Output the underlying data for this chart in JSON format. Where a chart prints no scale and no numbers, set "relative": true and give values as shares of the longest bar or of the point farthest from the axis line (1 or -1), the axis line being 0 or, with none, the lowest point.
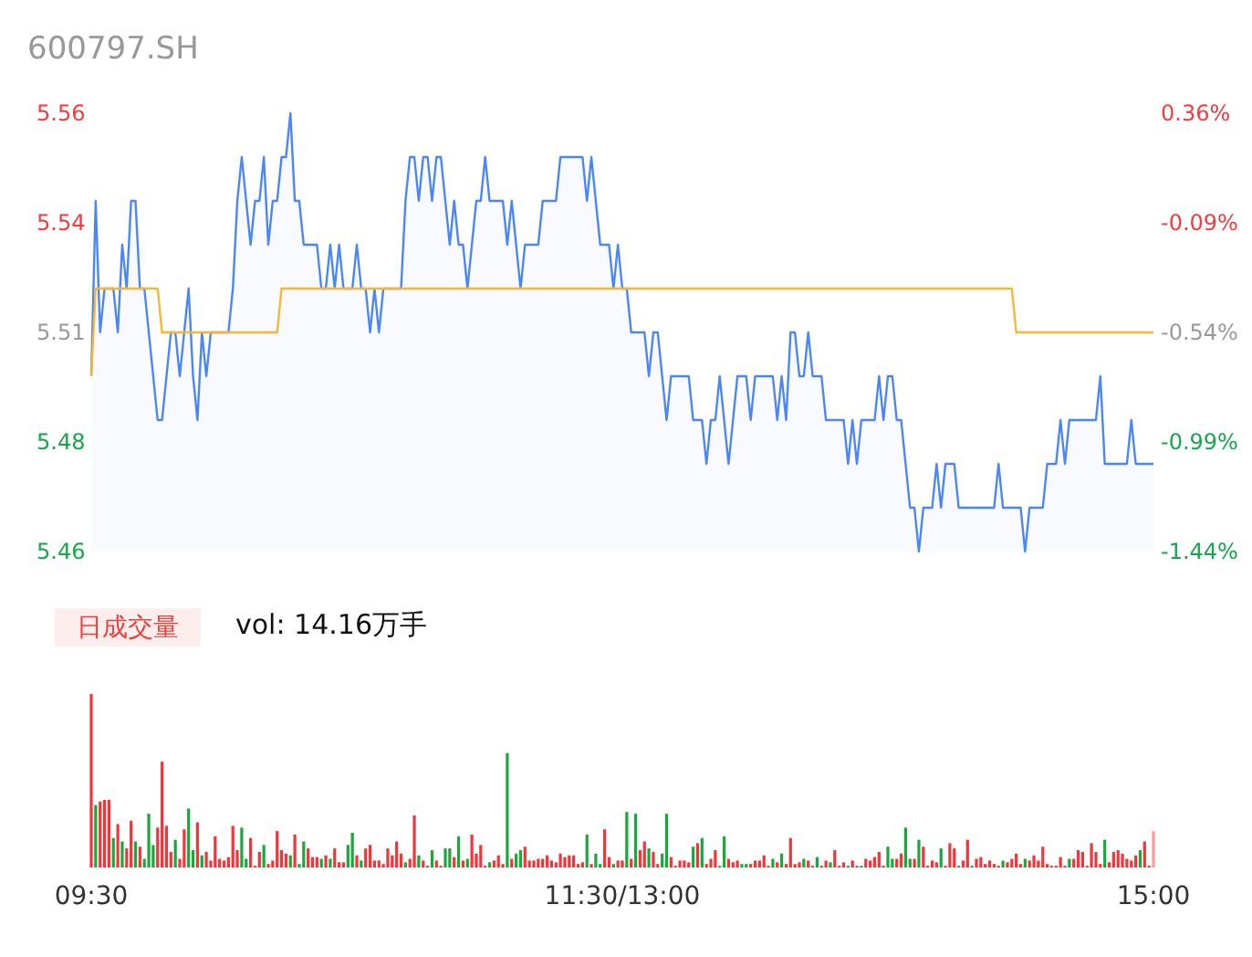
{
  "chart_data": [
    {
      "type": "area",
      "title": "600797.SH",
      "categories": [
        null,
        null,
        null,
        null,
        null,
        null,
        null,
        null,
        null,
        null,
        null,
        null,
        null,
        null,
        null,
        null,
        null,
        null,
        null,
        null,
        null,
        null,
        null,
        null,
        null,
        null,
        null,
        null,
        null,
        null,
        null,
        null,
        null,
        null,
        null,
        null,
        null,
        null,
        null,
        null,
        null,
        null,
        null,
        null,
        null,
        null,
        null,
        null,
        null,
        null,
        null,
        null,
        null,
        null,
        null,
        null,
        null,
        null,
        null,
        null,
        null,
        null,
        null,
        null,
        null,
        null,
        null,
        null,
        null,
        null,
        null,
        null,
        null,
        null,
        null,
        null,
        null,
        null,
        null,
        null,
        null,
        null,
        null,
        null,
        null,
        null,
        null,
        null,
        null,
        null,
        null,
        null,
        null,
        null,
        null,
        null,
        null,
        null,
        null,
        null,
        null,
        null,
        null,
        null,
        null,
        null,
        null,
        null,
        null,
        null,
        null,
        null,
        null,
        null,
        null,
        null,
        null,
        null,
        null,
        null,
        null,
        null,
        null,
        null,
        null,
        null,
        null,
        null,
        null,
        null,
        null,
        null,
        null,
        null,
        null,
        null,
        null,
        null,
        null,
        null,
        null,
        null,
        null,
        null,
        null,
        null,
        null,
        null,
        null,
        null,
        null,
        null,
        null,
        null,
        null,
        null,
        null,
        null,
        null,
        null,
        null,
        null,
        null,
        null,
        null,
        null,
        null,
        null,
        null,
        null,
        null,
        null,
        null,
        null,
        null,
        null,
        null,
        null,
        null,
        null,
        null,
        null,
        null,
        null,
        null,
        null,
        null,
        null,
        null,
        null,
        null,
        null,
        null,
        null,
        null,
        null,
        null,
        null,
        null,
        null,
        null,
        null,
        null,
        null,
        null,
        null,
        null,
        null,
        null,
        null,
        null,
        null,
        null,
        null,
        null,
        null,
        null,
        null,
        null,
        null,
        null,
        null,
        null,
        null,
        null,
        null,
        null,
        null,
        null,
        null,
        null,
        null,
        null,
        null,
        null,
        null,
        null,
        null,
        null,
        null,
        null
      ],
      "ylim": [
        5.46,
        5.56
      ],
      "yticks": [
        5.56,
        {
          "value": 5.535,
          "label": "5.54"
        },
        5.51,
        {
          "value": 5.485,
          "label": "5.48"
        },
        5.46
      ],
      "y2lim": [
        -1.44,
        0.36
      ],
      "y2ticks": [
        {
          "value": 0.36,
          "label": "0.36%"
        },
        {
          "value": -0.09,
          "label": "-0.09%"
        },
        {
          "value": -0.54,
          "label": "-0.54%"
        },
        {
          "value": -0.99,
          "label": "-0.99%"
        },
        {
          "value": -1.44,
          "label": "-1.44%"
        }
      ],
      "tick_labels": "y",
      "series": [
        {
          "type": "area",
          "color": "#4a86f7",
          "values": [
            5.5,
            5.54,
            5.51,
            5.52,
            5.52,
            5.52,
            5.51,
            5.53,
            5.52,
            5.54,
            5.54,
            5.52,
            5.52,
            5.51,
            5.5,
            5.49,
            5.49,
            5.5,
            5.51,
            5.51,
            5.5,
            5.51,
            5.52,
            5.5,
            5.49,
            5.51,
            5.5,
            5.51,
            5.51,
            5.51,
            5.51,
            5.51,
            5.52,
            5.54,
            5.55,
            5.54,
            5.53,
            5.54,
            5.54,
            5.55,
            5.53,
            5.54,
            5.54,
            5.55,
            5.55,
            5.56,
            5.54,
            5.54,
            5.53,
            5.53,
            5.53,
            5.53,
            5.52,
            5.52,
            5.53,
            5.52,
            5.53,
            5.52,
            5.52,
            5.52,
            5.53,
            5.52,
            5.52,
            5.51,
            5.52,
            5.51,
            5.52,
            5.52,
            5.52,
            5.52,
            5.52,
            5.54,
            5.55,
            5.55,
            5.54,
            5.55,
            5.55,
            5.54,
            5.55,
            5.55,
            5.54,
            5.53,
            5.54,
            5.53,
            5.53,
            5.52,
            5.53,
            5.54,
            5.54,
            5.55,
            5.54,
            5.54,
            5.54,
            5.54,
            5.53,
            5.54,
            5.53,
            5.52,
            5.53,
            5.53,
            5.53,
            5.53,
            5.54,
            5.54,
            5.54,
            5.54,
            5.55,
            5.55,
            5.55,
            5.55,
            5.55,
            5.55,
            5.54,
            5.55,
            5.54,
            5.53,
            5.53,
            5.53,
            5.52,
            5.53,
            5.52,
            5.52,
            5.51,
            5.51,
            5.51,
            5.51,
            5.5,
            5.51,
            5.51,
            5.5,
            5.49,
            5.5,
            5.5,
            5.5,
            5.5,
            5.5,
            5.49,
            5.49,
            5.49,
            5.48,
            5.49,
            5.49,
            5.5,
            5.49,
            5.48,
            5.49,
            5.5,
            5.5,
            5.5,
            5.49,
            5.5,
            5.5,
            5.5,
            5.5,
            5.5,
            5.49,
            5.5,
            5.49,
            5.51,
            5.51,
            5.5,
            5.5,
            5.51,
            5.5,
            5.5,
            5.5,
            5.49,
            5.49,
            5.49,
            5.49,
            5.49,
            5.48,
            5.49,
            5.48,
            5.49,
            5.49,
            5.49,
            5.49,
            5.5,
            5.49,
            5.5,
            5.5,
            5.49,
            5.49,
            5.48,
            5.47,
            5.47,
            5.46,
            5.47,
            5.47,
            5.47,
            5.48,
            5.47,
            5.48,
            5.48,
            5.48,
            5.47,
            5.47,
            5.47,
            5.47,
            5.47,
            5.47,
            5.47,
            5.47,
            5.47,
            5.48,
            5.47,
            5.47,
            5.47,
            5.47,
            5.47,
            5.46,
            5.47,
            5.47,
            5.47,
            5.47,
            5.48,
            5.48,
            5.48,
            5.49,
            5.48,
            5.49,
            5.49,
            5.49,
            5.49,
            5.49,
            5.49,
            5.49,
            5.5,
            5.48,
            5.48,
            5.48,
            5.48,
            5.48,
            5.48,
            5.49,
            5.48,
            5.48,
            5.48,
            5.48,
            5.48
          ]
        },
        {
          "type": "line",
          "color": "#f7b731",
          "values": [
            5.5,
            5.52,
            5.52,
            5.52,
            5.52,
            5.52,
            5.52,
            5.52,
            5.52,
            5.52,
            5.52,
            5.52,
            5.52,
            5.52,
            5.52,
            5.52,
            5.51,
            5.51,
            5.51,
            5.51,
            5.51,
            5.51,
            5.51,
            5.51,
            5.51,
            5.51,
            5.51,
            5.51,
            5.51,
            5.51,
            5.51,
            5.51,
            5.51,
            5.51,
            5.51,
            5.51,
            5.51,
            5.51,
            5.51,
            5.51,
            5.51,
            5.51,
            5.51,
            5.52,
            5.52,
            5.52,
            5.52,
            5.52,
            5.52,
            5.52,
            5.52,
            5.52,
            5.52,
            5.52,
            5.52,
            5.52,
            5.52,
            5.52,
            5.52,
            5.52,
            5.52,
            5.52,
            5.52,
            5.52,
            5.52,
            5.52,
            5.52,
            5.52,
            5.52,
            5.52,
            5.52,
            5.52,
            5.52,
            5.52,
            5.52,
            5.52,
            5.52,
            5.52,
            5.52,
            5.52,
            5.52,
            5.52,
            5.52,
            5.52,
            5.52,
            5.52,
            5.52,
            5.52,
            5.52,
            5.52,
            5.52,
            5.52,
            5.52,
            5.52,
            5.52,
            5.52,
            5.52,
            5.52,
            5.52,
            5.52,
            5.52,
            5.52,
            5.52,
            5.52,
            5.52,
            5.52,
            5.52,
            5.52,
            5.52,
            5.52,
            5.52,
            5.52,
            5.52,
            5.52,
            5.52,
            5.52,
            5.52,
            5.52,
            5.52,
            5.52,
            5.52,
            5.52,
            5.52,
            5.52,
            5.52,
            5.52,
            5.52,
            5.52,
            5.52,
            5.52,
            5.52,
            5.52,
            5.52,
            5.52,
            5.52,
            5.52,
            5.52,
            5.52,
            5.52,
            5.52,
            5.52,
            5.52,
            5.52,
            5.52,
            5.52,
            5.52,
            5.52,
            5.52,
            5.52,
            5.52,
            5.52,
            5.52,
            5.52,
            5.52,
            5.52,
            5.52,
            5.52,
            5.52,
            5.52,
            5.52,
            5.52,
            5.52,
            5.52,
            5.52,
            5.52,
            5.52,
            5.52,
            5.52,
            5.52,
            5.52,
            5.52,
            5.52,
            5.52,
            5.52,
            5.52,
            5.52,
            5.52,
            5.52,
            5.52,
            5.52,
            5.52,
            5.52,
            5.52,
            5.52,
            5.52,
            5.52,
            5.52,
            5.52,
            5.52,
            5.52,
            5.52,
            5.52,
            5.52,
            5.52,
            5.52,
            5.52,
            5.52,
            5.52,
            5.52,
            5.52,
            5.52,
            5.52,
            5.52,
            5.52,
            5.52,
            5.52,
            5.52,
            5.52,
            5.52,
            5.51,
            5.51,
            5.51,
            5.51,
            5.51,
            5.51,
            5.51,
            5.51,
            5.51,
            5.51,
            5.51,
            5.51,
            5.51,
            5.51,
            5.51,
            5.51,
            5.51,
            5.51,
            5.51,
            5.51,
            5.51,
            5.51,
            5.51,
            5.51,
            5.51,
            5.51,
            5.51,
            5.51,
            5.51,
            5.51,
            5.51,
            5.51
          ]
        }
      ]
    },
    {
      "type": "bar",
      "title": "日成交量",
      "annotations": [
        "vol: 14.16万手"
      ],
      "relative": true,
      "tick_labels": "x",
      "categories": [
        "09:30",
        null,
        null,
        null,
        null,
        null,
        null,
        null,
        null,
        null,
        null,
        null,
        null,
        null,
        null,
        null,
        null,
        null,
        null,
        null,
        null,
        null,
        null,
        null,
        null,
        null,
        null,
        null,
        null,
        null,
        null,
        null,
        null,
        null,
        null,
        null,
        null,
        null,
        null,
        null,
        null,
        null,
        null,
        null,
        null,
        null,
        null,
        null,
        null,
        null,
        null,
        null,
        null,
        null,
        null,
        null,
        null,
        null,
        null,
        null,
        null,
        null,
        null,
        null,
        null,
        null,
        null,
        null,
        null,
        null,
        null,
        null,
        null,
        null,
        null,
        null,
        null,
        null,
        null,
        null,
        null,
        null,
        null,
        null,
        null,
        null,
        null,
        null,
        null,
        null,
        null,
        null,
        null,
        null,
        null,
        null,
        null,
        null,
        null,
        null,
        null,
        null,
        null,
        null,
        null,
        null,
        null,
        null,
        null,
        null,
        null,
        null,
        null,
        null,
        null,
        null,
        null,
        null,
        null,
        null,
        "11:30/13:00",
        null,
        null,
        null,
        null,
        null,
        null,
        null,
        null,
        null,
        null,
        null,
        null,
        null,
        null,
        null,
        null,
        null,
        null,
        null,
        null,
        null,
        null,
        null,
        null,
        null,
        null,
        null,
        null,
        null,
        null,
        null,
        null,
        null,
        null,
        null,
        null,
        null,
        null,
        null,
        null,
        null,
        null,
        null,
        null,
        null,
        null,
        null,
        null,
        null,
        null,
        null,
        null,
        null,
        null,
        null,
        null,
        null,
        null,
        null,
        null,
        null,
        null,
        null,
        null,
        null,
        null,
        null,
        null,
        null,
        null,
        null,
        null,
        null,
        null,
        null,
        null,
        null,
        null,
        null,
        null,
        null,
        null,
        null,
        null,
        null,
        null,
        null,
        null,
        null,
        null,
        null,
        null,
        null,
        null,
        null,
        null,
        null,
        null,
        null,
        null,
        null,
        null,
        null,
        null,
        null,
        null,
        null,
        null,
        null,
        null,
        null,
        null,
        null,
        null,
        null,
        null,
        null,
        null,
        null,
        "15:00"
      ],
      "values": [
        1.0,
        0.36,
        0.38,
        0.39,
        0.39,
        0.17,
        0.25,
        0.15,
        0.11,
        0.27,
        0.15,
        0.12,
        0.05,
        0.31,
        0.13,
        0.23,
        0.61,
        0.24,
        0.09,
        0.16,
        0.05,
        0.22,
        0.34,
        0.1,
        0.26,
        0.07,
        0.09,
        0.04,
        0.18,
        0.05,
        0.04,
        0.06,
        0.24,
        0.1,
        0.23,
        0.05,
        0.17,
        0.01,
        0.09,
        0.13,
        0.02,
        0.04,
        0.21,
        0.1,
        0.08,
        0.07,
        0.19,
        0.02,
        0.15,
        0.11,
        0.06,
        0.06,
        0.05,
        0.07,
        0.05,
        0.11,
        0.03,
        0.03,
        0.13,
        0.2,
        0.07,
        0.04,
        0.11,
        0.13,
        0.04,
        0.04,
        0.02,
        0.11,
        0.07,
        0.15,
        0.08,
        0.03,
        0.05,
        0.3,
        0.07,
        0.04,
        0.01,
        0.1,
        0.04,
        0.01,
        0.11,
        0.11,
        0.06,
        0.18,
        0.04,
        0.05,
        0.19,
        0.08,
        0.13,
        0.01,
        0.03,
        0.04,
        0.07,
        0.02,
        0.66,
        0.05,
        0.08,
        0.1,
        0.12,
        0.04,
        0.04,
        0.05,
        0.05,
        0.07,
        0.04,
        0.03,
        0.08,
        0.06,
        0.07,
        0.07,
        0.02,
        0.03,
        0.19,
        0.02,
        0.08,
        0.02,
        0.22,
        0.06,
        0.02,
        0.04,
        0.04,
        0.32,
        0.05,
        0.31,
        0.1,
        0.15,
        0.11,
        0.09,
        0.02,
        0.08,
        0.31,
        0.06,
        0.01,
        0.04,
        0.04,
        0.03,
        0.12,
        0.14,
        0.17,
        0.02,
        0.05,
        0.1,
        0.01,
        0.18,
        0.05,
        0.03,
        0.04,
        0.02,
        0.02,
        0.02,
        0.04,
        0.04,
        0.07,
        0.01,
        0.05,
        0.03,
        0.08,
        0.02,
        0.17,
        0.02,
        0.03,
        0.05,
        0.04,
        0.01,
        0.06,
        0.01,
        0.04,
        0.03,
        0.1,
        0.01,
        0.03,
        0.01,
        0.04,
        0.01,
        0.01,
        0.05,
        0.04,
        0.06,
        0.09,
        0.01,
        0.12,
        0.05,
        0.05,
        0.08,
        0.23,
        0.05,
        0.05,
        0.16,
        0.12,
        0.01,
        0.04,
        0.03,
        0.11,
        0.01,
        0.14,
        0.11,
        0.01,
        0.04,
        0.16,
        0.01,
        0.05,
        0.06,
        0.02,
        0.04,
        0.02,
        0.01,
        0.04,
        0.03,
        0.05,
        0.08,
        0.02,
        0.05,
        0.04,
        0.07,
        0.04,
        0.12,
        0.02,
        0.01,
        0.01,
        0.06,
        0.01,
        0.05,
        0.05,
        0.1,
        0.09,
        0.01,
        0.14,
        0.09,
        0.02,
        0.16,
        0.03,
        0.09,
        0.1,
        0.08,
        0.05,
        0.04,
        0.07,
        0.1,
        0.15,
        0.01,
        0.21
      ],
      "colors": [
        "#f5343a",
        "#19a83a",
        "#f5343a",
        "#f5343a",
        "#f5343a",
        "#19a83a",
        "#f5343a",
        "#19a83a",
        "#f5343a",
        "#f5343a",
        "#19a83a",
        "#f5343a",
        "#19a83a",
        "#19a83a",
        "#19a83a",
        "#f5343a",
        "#f5343a",
        "#f5343a",
        "#f5343a",
        "#19a83a",
        "#f5343a",
        "#f5343a",
        "#19a83a",
        "#19a83a",
        "#f5343a",
        "#19a83a",
        "#f5343a",
        "#f5343a",
        "#f5343a",
        "#f5343a",
        "#f5343a",
        "#f5343a",
        "#f5343a",
        "#f5343a",
        "#19a83a",
        "#19a83a",
        "#f5343a",
        "#f5343a",
        "#f5343a",
        "#19a83a",
        "#f5343a",
        "#f5343a",
        "#f5343a",
        "#f5343a",
        "#f5343a",
        "#19a83a",
        "#f5343a",
        "#19a83a",
        "#19a83a",
        "#f5343a",
        "#f5343a",
        "#f5343a",
        "#19a83a",
        "#f5343a",
        "#19a83a",
        "#f5343a",
        "#f5343a",
        "#f5343a",
        "#19a83a",
        "#19a83a",
        "#f5343a",
        "#19a83a",
        "#f5343a",
        "#f5343a",
        "#f5343a",
        "#f5343a",
        "#f5343a",
        "#f5343a",
        "#f5343a",
        "#f5343a",
        "#f5343a",
        "#19a83a",
        "#f5343a",
        "#f5343a",
        "#19a83a",
        "#f5343a",
        "#f5343a",
        "#19a83a",
        "#f5343a",
        "#f5343a",
        "#19a83a",
        "#19a83a",
        "#f5343a",
        "#19a83a",
        "#f5343a",
        "#19a83a",
        "#f5343a",
        "#f5343a",
        "#f5343a",
        "#f5343a",
        "#19a83a",
        "#f5343a",
        "#f5343a",
        "#f5343a",
        "#19a83a",
        "#f5343a",
        "#19a83a",
        "#19a83a",
        "#f5343a",
        "#f5343a",
        "#f5343a",
        "#f5343a",
        "#f5343a",
        "#f5343a",
        "#f5343a",
        "#f5343a",
        "#f5343a",
        "#f5343a",
        "#f5343a",
        "#f5343a",
        "#f5343a",
        "#f5343a",
        "#19a83a",
        "#f5343a",
        "#19a83a",
        "#19a83a",
        "#f5343a",
        "#f5343a",
        "#19a83a",
        "#f5343a",
        "#f5343a",
        "#19a83a",
        "#f5343a",
        "#19a83a",
        "#f5343a",
        "#f5343a",
        "#19a83a",
        "#f5343a",
        "#f5343a",
        "#19a83a",
        "#19a83a",
        "#f5343a",
        "#f5343a",
        "#f5343a",
        "#f5343a",
        "#f5343a",
        "#19a83a",
        "#f5343a",
        "#19a83a",
        "#f5343a",
        "#f5343a",
        "#f5343a",
        "#19a83a",
        "#19a83a",
        "#f5343a",
        "#f5343a",
        "#f5343a",
        "#19a83a",
        "#19a83a",
        "#f5343a",
        "#f5343a",
        "#f5343a",
        "#f5343a",
        "#f5343a",
        "#19a83a",
        "#f5343a",
        "#19a83a",
        "#f5343a",
        "#f5343a",
        "#f5343a",
        "#f5343a",
        "#19a83a",
        "#f5343a",
        "#f5343a",
        "#19a83a",
        "#f5343a",
        "#f5343a",
        "#19a83a",
        "#f5343a",
        "#f5343a",
        "#f5343a",
        "#19a83a",
        "#f5343a",
        "#f5343a",
        "#19a83a",
        "#f5343a",
        "#f5343a",
        "#f5343a",
        "#f5343a",
        "#f5343a",
        "#19a83a",
        "#19a83a",
        "#f5343a",
        "#f5343a",
        "#19a83a",
        "#19a83a",
        "#f5343a",
        "#19a83a",
        "#f5343a",
        "#f5343a",
        "#f5343a",
        "#f5343a",
        "#19a83a",
        "#f5343a",
        "#f5343a",
        "#f5343a",
        "#19a83a",
        "#f5343a",
        "#f5343a",
        "#19a83a",
        "#f5343a",
        "#f5343a",
        "#f5343a",
        "#f5343a",
        "#f5343a",
        "#f5343a",
        "#19a83a",
        "#f5343a",
        "#f5343a",
        "#f5343a",
        "#f5343a",
        "#19a83a",
        "#f5343a",
        "#f5343a",
        "#f5343a",
        "#f5343a",
        "#f5343a",
        "#f5343a",
        "#f5343a",
        "#f5343a",
        "#f5343a",
        "#19a83a",
        "#f5343a",
        "#f5343a",
        "#f5343a",
        "#f5343a",
        "#f5343a",
        "#f5343a",
        "#f5343a",
        "#19a83a",
        "#f5343a",
        "#f5343a",
        "#f5343a",
        "#f5343a",
        "#f5343a",
        "#f5343a",
        "#f5343a",
        "#19a83a",
        "#f5343a",
        "#f5343a",
        "#ff9a9a"
      ]
    }
  ]
}
